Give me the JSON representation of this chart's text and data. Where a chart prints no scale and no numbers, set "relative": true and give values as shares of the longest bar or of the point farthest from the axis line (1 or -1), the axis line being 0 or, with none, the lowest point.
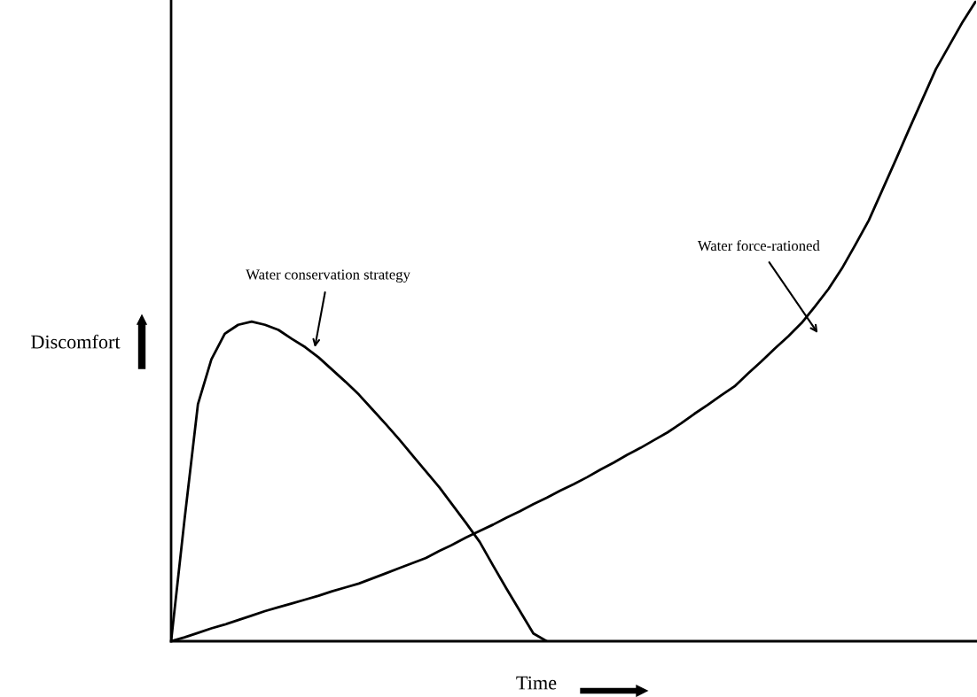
{
  "chart_data": {
    "type": "line",
    "relative": true,
    "xlabel": "Time",
    "ylabel": "Discomfort",
    "grid": false,
    "legend": false,
    "marker": "none",
    "line_style": "solid",
    "categories": [
      null,
      null,
      null,
      null,
      null,
      null,
      null,
      null,
      null,
      null,
      null,
      null,
      null,
      null,
      null,
      null,
      null,
      null,
      null,
      null,
      null,
      null,
      null,
      null,
      null,
      null,
      null,
      null,
      null,
      null,
      null,
      null,
      null,
      null,
      null,
      null,
      null,
      null,
      null,
      null,
      null,
      null,
      null,
      null,
      null,
      null,
      null,
      null,
      null,
      null,
      null,
      null,
      null,
      null,
      null,
      null,
      null,
      null,
      null,
      null,
      null
    ],
    "series": [
      {
        "color": "#000000",
        "values": [
          0,
          0.19,
          0.37,
          0.44,
          0.48,
          0.494,
          0.499,
          0.494,
          0.486,
          0.472,
          0.459,
          0.443,
          0.424,
          0.405,
          0.385,
          0.362,
          0.339,
          0.315,
          0.29,
          0.265,
          0.24,
          0.212,
          0.184,
          0.155,
          0.118,
          0.082,
          0.047,
          0.012,
          0,
          null,
          null,
          null,
          null,
          null,
          null,
          null,
          null,
          null,
          null,
          null,
          null,
          null,
          null,
          null,
          null,
          null,
          null,
          null,
          null,
          null,
          null,
          null,
          null,
          null,
          null,
          null,
          null,
          null,
          null,
          null,
          null
        ]
      },
      {
        "color": "#000000",
        "values": [
          0,
          0.006,
          0.013,
          0.02,
          0.026,
          0.033,
          0.04,
          0.047,
          0.053,
          0.059,
          0.065,
          0.071,
          0.078,
          0.084,
          0.09,
          0.098,
          0.106,
          0.114,
          0.122,
          0.13,
          0.141,
          0.151,
          0.162,
          0.172,
          0.182,
          0.193,
          0.203,
          0.214,
          0.224,
          0.235,
          0.245,
          0.256,
          0.268,
          0.279,
          0.291,
          0.302,
          0.314,
          0.326,
          0.34,
          0.355,
          0.369,
          0.384,
          0.398,
          0.418,
          0.437,
          0.457,
          0.476,
          0.497,
          0.523,
          0.55,
          0.582,
          0.619,
          0.657,
          0.704,
          0.751,
          0.799,
          0.846,
          0.893,
          0.93,
          0.967,
          1.0
        ]
      }
    ],
    "annotations": [
      "Water conservation strategy",
      "Water force-rationed"
    ]
  }
}
